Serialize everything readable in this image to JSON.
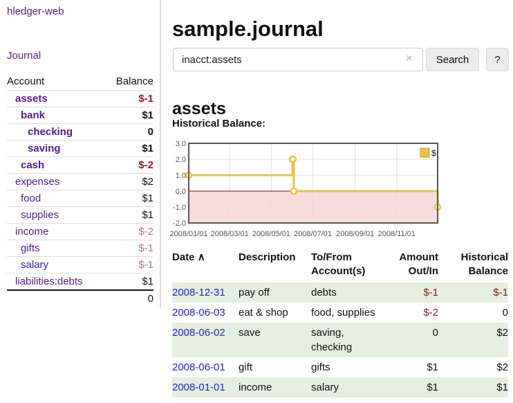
{
  "app": {
    "brand": "hledger-web"
  },
  "nav": {
    "journal": "Journal"
  },
  "sidebar": {
    "col_account": "Account",
    "col_balance": "Balance",
    "accounts": [
      {
        "name": "assets",
        "depth": 1,
        "balance": "$-1",
        "in_query": true,
        "balance_style": "neg",
        "link_style": "visited"
      },
      {
        "name": "bank",
        "depth": 2,
        "balance": "$1",
        "in_query": true,
        "balance_style": "",
        "link_style": "visited"
      },
      {
        "name": "checking",
        "depth": 3,
        "balance": "0",
        "in_query": true,
        "balance_style": "",
        "link_style": "visited"
      },
      {
        "name": "saving",
        "depth": 3,
        "balance": "$1",
        "in_query": true,
        "balance_style": "",
        "link_style": "visited"
      },
      {
        "name": "cash",
        "depth": 2,
        "balance": "$-2",
        "in_query": true,
        "balance_style": "neg",
        "link_style": "visited"
      },
      {
        "name": "expenses",
        "depth": 1,
        "balance": "$2",
        "in_query": false,
        "balance_style": "",
        "link_style": "visited"
      },
      {
        "name": "food",
        "depth": 2,
        "balance": "$1",
        "in_query": false,
        "balance_style": "",
        "link_style": "visited"
      },
      {
        "name": "supplies",
        "depth": 2,
        "balance": "$1",
        "in_query": false,
        "balance_style": "",
        "link_style": "visited"
      },
      {
        "name": "income",
        "depth": 1,
        "balance": "$-2",
        "in_query": false,
        "balance_style": "neg-faded",
        "link_style": "visited"
      },
      {
        "name": "gifts",
        "depth": 2,
        "balance": "$-1",
        "in_query": false,
        "balance_style": "neg-faded",
        "link_style": "visited"
      },
      {
        "name": "salary",
        "depth": 2,
        "balance": "$-1",
        "in_query": false,
        "balance_style": "neg-faded",
        "link_style": "unvisited"
      },
      {
        "name": "liabilities:debts",
        "depth": 1,
        "balance": "$1",
        "in_query": false,
        "balance_style": "",
        "link_style": "visited"
      }
    ],
    "total": "0"
  },
  "header": {
    "title": "sample.journal"
  },
  "search": {
    "value": "inacct:assets",
    "clear_icon": "×",
    "button_label": "Search",
    "help_label": "?"
  },
  "account_page": {
    "heading": "assets",
    "chart_title": "Historical Balance:"
  },
  "chart_data": {
    "type": "line",
    "step": true,
    "title": "Historical Balance:",
    "x_range": [
      "2008-01-01",
      "2008-12-31"
    ],
    "ylim": [
      -2,
      3
    ],
    "yticks": [
      "3.0",
      "2.0",
      "1.0",
      "0.0",
      "-1.0",
      "-2.0"
    ],
    "xticks": [
      "2008/01/01",
      "2008/03/01",
      "2008/05/01",
      "2008/07/01",
      "2008/09/01",
      "2008/11/01"
    ],
    "grid": true,
    "legend_position": "top-right",
    "series": [
      {
        "name": "$",
        "color": "#edc240",
        "points": [
          [
            "2008-01-01",
            1
          ],
          [
            "2008-06-01",
            2
          ],
          [
            "2008-06-02",
            2
          ],
          [
            "2008-06-03",
            0
          ],
          [
            "2008-12-31",
            -1
          ]
        ]
      }
    ],
    "negative_fill": "#fbdcdc",
    "zero_line_color": "#8b0000"
  },
  "transactions": {
    "columns": [
      {
        "label": "Date",
        "line2": "",
        "align": "left",
        "sort_icon": "∧"
      },
      {
        "label": "Description",
        "line2": "",
        "align": "left",
        "sort_icon": ""
      },
      {
        "label": "To/From",
        "line2": "Account(s)",
        "align": "left",
        "sort_icon": ""
      },
      {
        "label": "Amount",
        "line2": "Out/In",
        "align": "right",
        "sort_icon": ""
      },
      {
        "label": "Historical",
        "line2": "Balance",
        "align": "right",
        "sort_icon": ""
      }
    ],
    "rows": [
      {
        "date": "2008-12-31",
        "description": "pay off",
        "accounts": "debts",
        "amount": "$-1",
        "amount_style": "neg",
        "balance": "$-1",
        "balance_style": "neg"
      },
      {
        "date": "2008-06-03",
        "description": "eat & shop",
        "accounts": "food, supplies",
        "amount": "$-2",
        "amount_style": "neg",
        "balance": "0",
        "balance_style": ""
      },
      {
        "date": "2008-06-02",
        "description": "save",
        "accounts": "saving, checking",
        "amount": "0",
        "amount_style": "",
        "balance": "$2",
        "balance_style": ""
      },
      {
        "date": "2008-06-01",
        "description": "gift",
        "accounts": "gifts",
        "amount": "$1",
        "amount_style": "",
        "balance": "$2",
        "balance_style": ""
      },
      {
        "date": "2008-01-01",
        "description": "income",
        "accounts": "salary",
        "amount": "$1",
        "amount_style": "",
        "balance": "$1",
        "balance_style": ""
      }
    ]
  },
  "colors": {
    "link_purple": "#551a8b",
    "link_blue": "#2323cc",
    "negative": "#961717",
    "negative_faded": "#bf6f6f",
    "row_green": "#e4efe1",
    "series_yellow": "#edc240",
    "chart_negative_fill": "#fbdcdc",
    "chart_zero_line": "#8b0000"
  }
}
